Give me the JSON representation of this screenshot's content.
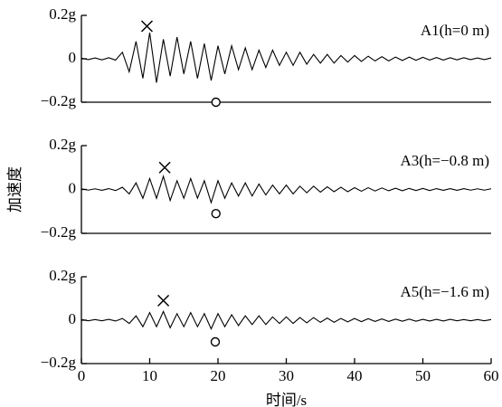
{
  "chart_data": [
    {
      "type": "line",
      "label": "A1(h=0 m)",
      "xlim": [
        0,
        60
      ],
      "ylim": [
        -0.2,
        0.2
      ],
      "yticks": [
        {
          "value": 0.2,
          "label": "0.2g"
        },
        0,
        {
          "value": -0.2,
          "label": "−0.2g"
        }
      ],
      "x": [
        0,
        1,
        2,
        3,
        4,
        5,
        6,
        7,
        8,
        9,
        10,
        11,
        12,
        13,
        14,
        15,
        16,
        17,
        18,
        19,
        20,
        21,
        22,
        23,
        24,
        25,
        26,
        27,
        28,
        29,
        30,
        31,
        32,
        33,
        34,
        35,
        36,
        37,
        38,
        39,
        40,
        41,
        42,
        43,
        44,
        45,
        46,
        47,
        48,
        49,
        50,
        51,
        52,
        53,
        54,
        55,
        56,
        57,
        58,
        59,
        60
      ],
      "series": [
        {
          "color": "#000000",
          "values": [
            0.003,
            -0.004,
            0.004,
            -0.005,
            0.005,
            -0.006,
            0.03,
            -0.06,
            0.08,
            -0.09,
            0.12,
            -0.11,
            0.09,
            -0.08,
            0.1,
            -0.07,
            0.08,
            -0.09,
            0.07,
            -0.1,
            0.06,
            -0.07,
            0.06,
            -0.05,
            0.05,
            -0.05,
            0.04,
            -0.04,
            0.04,
            -0.03,
            0.03,
            -0.03,
            0.03,
            -0.025,
            0.02,
            -0.02,
            0.02,
            -0.02,
            0.015,
            -0.015,
            0.015,
            -0.012,
            0.012,
            -0.01,
            0.01,
            -0.01,
            0.008,
            -0.008,
            0.008,
            -0.007,
            0.007,
            -0.006,
            0.006,
            -0.006,
            0.005,
            -0.005,
            0.005,
            -0.004,
            0.004,
            -0.004,
            0.004
          ]
        }
      ],
      "peak": {
        "x": 9.6,
        "y": 0.15
      },
      "trough": {
        "x": 19.7,
        "y": -0.2
      }
    },
    {
      "type": "line",
      "label": "A3(h=−0.8 m)",
      "ylabel": "加速度",
      "xlim": [
        0,
        60
      ],
      "ylim": [
        -0.2,
        0.2
      ],
      "yticks": [
        {
          "value": 0.2,
          "label": "0.2g"
        },
        0,
        {
          "value": -0.2,
          "label": "−0.2g"
        }
      ],
      "x": [
        0,
        1,
        2,
        3,
        4,
        5,
        6,
        7,
        8,
        9,
        10,
        11,
        12,
        13,
        14,
        15,
        16,
        17,
        18,
        19,
        20,
        21,
        22,
        23,
        24,
        25,
        26,
        27,
        28,
        29,
        30,
        31,
        32,
        33,
        34,
        35,
        36,
        37,
        38,
        39,
        40,
        41,
        42,
        43,
        44,
        45,
        46,
        47,
        48,
        49,
        50,
        51,
        52,
        53,
        54,
        55,
        56,
        57,
        58,
        59,
        60
      ],
      "series": [
        {
          "color": "#000000",
          "values": [
            0.003,
            -0.003,
            0.003,
            -0.004,
            0.004,
            -0.005,
            0.01,
            -0.02,
            0.03,
            -0.04,
            0.05,
            -0.04,
            0.06,
            -0.05,
            0.04,
            -0.04,
            0.05,
            -0.04,
            0.04,
            -0.06,
            0.04,
            -0.04,
            0.03,
            -0.03,
            0.03,
            -0.03,
            0.025,
            -0.025,
            0.02,
            -0.02,
            0.02,
            -0.02,
            0.015,
            -0.015,
            0.015,
            -0.012,
            0.012,
            -0.01,
            0.01,
            -0.01,
            0.008,
            -0.008,
            0.008,
            -0.007,
            0.007,
            -0.006,
            0.006,
            -0.006,
            0.005,
            -0.005,
            0.005,
            -0.005,
            0.004,
            -0.004,
            0.004,
            -0.004,
            0.004,
            -0.003,
            0.003,
            -0.003,
            0.003
          ]
        }
      ],
      "peak": {
        "x": 12.2,
        "y": 0.1
      },
      "trough": {
        "x": 19.7,
        "y": -0.11
      }
    },
    {
      "type": "line",
      "label": "A5(h=−1.6 m)",
      "xlabel": "时间/s",
      "xlim": [
        0,
        60
      ],
      "ylim": [
        -0.2,
        0.2
      ],
      "xticks": [
        0,
        10,
        20,
        30,
        40,
        50,
        60
      ],
      "yticks": [
        {
          "value": 0.2,
          "label": "0.2g"
        },
        0,
        {
          "value": -0.2,
          "label": "−0.2g"
        }
      ],
      "x": [
        0,
        1,
        2,
        3,
        4,
        5,
        6,
        7,
        8,
        9,
        10,
        11,
        12,
        13,
        14,
        15,
        16,
        17,
        18,
        19,
        20,
        21,
        22,
        23,
        24,
        25,
        26,
        27,
        28,
        29,
        30,
        31,
        32,
        33,
        34,
        35,
        36,
        37,
        38,
        39,
        40,
        41,
        42,
        43,
        44,
        45,
        46,
        47,
        48,
        49,
        50,
        51,
        52,
        53,
        54,
        55,
        56,
        57,
        58,
        59,
        60
      ],
      "series": [
        {
          "color": "#000000",
          "values": [
            0.003,
            -0.003,
            0.003,
            -0.003,
            0.004,
            -0.004,
            0.008,
            -0.015,
            0.02,
            -0.03,
            0.035,
            -0.03,
            0.04,
            -0.035,
            0.03,
            -0.03,
            0.035,
            -0.03,
            0.03,
            -0.04,
            0.03,
            -0.03,
            0.025,
            -0.025,
            0.02,
            -0.02,
            0.02,
            -0.02,
            0.015,
            -0.015,
            0.015,
            -0.015,
            0.012,
            -0.012,
            0.012,
            -0.01,
            0.01,
            -0.01,
            0.008,
            -0.008,
            0.008,
            -0.007,
            0.007,
            -0.006,
            0.006,
            -0.006,
            0.005,
            -0.005,
            0.005,
            -0.005,
            0.004,
            -0.004,
            0.004,
            -0.004,
            0.004,
            -0.003,
            0.003,
            -0.003,
            0.003,
            -0.003,
            0.003
          ]
        }
      ],
      "peak": {
        "x": 12.0,
        "y": 0.09
      },
      "trough": {
        "x": 19.6,
        "y": -0.1
      }
    }
  ]
}
